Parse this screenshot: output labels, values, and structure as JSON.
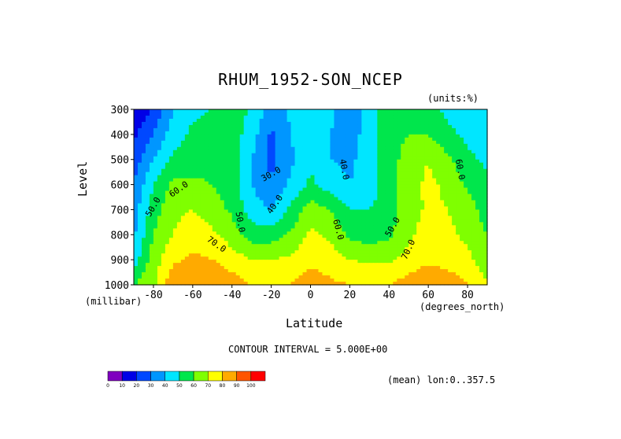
{
  "chart_data": {
    "type": "heatmap",
    "title": "RHUM_1952-SON_NCEP",
    "units_label": "(units:%)",
    "xlabel": "Latitude",
    "x_units_label": "(degrees_north)",
    "ylabel": "Level",
    "y_units_label": "(millibar)",
    "xlim": [
      -90,
      90
    ],
    "ylim": [
      300,
      1000
    ],
    "x_ticks": [
      -80,
      -60,
      -40,
      -20,
      0,
      20,
      40,
      60,
      80
    ],
    "x_tick_labels": [
      "-80",
      "-60",
      "-40",
      "-20",
      "0",
      "20",
      "40",
      "60",
      "80"
    ],
    "y_ticks": [
      300,
      400,
      500,
      600,
      700,
      800,
      900,
      1000
    ],
    "y_tick_labels": [
      "300",
      "400",
      "500",
      "600",
      "700",
      "800",
      "900",
      "1000"
    ],
    "lat": [
      -90,
      -80,
      -70,
      -60,
      -50,
      -40,
      -30,
      -20,
      -10,
      0,
      10,
      20,
      30,
      40,
      50,
      60,
      70,
      80,
      90
    ],
    "levels": [
      300,
      400,
      500,
      600,
      700,
      800,
      900,
      1000
    ],
    "values": [
      [
        10,
        22,
        40,
        48,
        50,
        52,
        50,
        35,
        42,
        50,
        42,
        35,
        45,
        55,
        58,
        52,
        48,
        45,
        42
      ],
      [
        18,
        30,
        45,
        52,
        55,
        55,
        45,
        28,
        40,
        48,
        40,
        35,
        45,
        55,
        60,
        60,
        52,
        48,
        45
      ],
      [
        25,
        40,
        52,
        55,
        57,
        55,
        40,
        28,
        38,
        48,
        40,
        38,
        45,
        55,
        65,
        70,
        62,
        52,
        48
      ],
      [
        30,
        50,
        62,
        62,
        60,
        55,
        40,
        30,
        42,
        52,
        45,
        40,
        45,
        55,
        66,
        72,
        68,
        58,
        52
      ],
      [
        35,
        55,
        68,
        70,
        65,
        58,
        45,
        40,
        52,
        65,
        60,
        50,
        50,
        55,
        65,
        72,
        70,
        65,
        55
      ],
      [
        38,
        60,
        70,
        75,
        72,
        65,
        55,
        55,
        62,
        72,
        68,
        58,
        55,
        58,
        68,
        75,
        72,
        68,
        60
      ],
      [
        45,
        65,
        78,
        82,
        80,
        75,
        70,
        70,
        72,
        78,
        75,
        70,
        68,
        68,
        74,
        78,
        76,
        72,
        65
      ],
      [
        60,
        68,
        88,
        90,
        88,
        85,
        80,
        78,
        80,
        85,
        82,
        80,
        80,
        80,
        85,
        88,
        86,
        80,
        70
      ]
    ],
    "colorbar": {
      "bounds": [
        0,
        10,
        20,
        30,
        40,
        50,
        60,
        70,
        80,
        90,
        100
      ],
      "tick_labels": [
        "0",
        "10",
        "20",
        "30",
        "40",
        "50",
        "60",
        "70",
        "80",
        "90",
        "100"
      ],
      "colors": [
        "#7f00bf",
        "#0000e6",
        "#0048ff",
        "#0096ff",
        "#00e6ff",
        "#00e64c",
        "#7fff00",
        "#ffff00",
        "#ffaa00",
        "#ff5500",
        "#ff0000"
      ]
    },
    "contour_labels": [
      {
        "text": "30.0",
        "lat": -20,
        "level": 560,
        "angle": -30
      },
      {
        "text": "40.0",
        "lat": 17,
        "level": 540,
        "angle": 80
      },
      {
        "text": "60.0",
        "lat": 76,
        "level": 540,
        "angle": 80
      },
      {
        "text": "60.0",
        "lat": -67,
        "level": 620,
        "angle": -35
      },
      {
        "text": "50.0",
        "lat": -80,
        "level": 690,
        "angle": -60
      },
      {
        "text": "40.0",
        "lat": -18,
        "level": 680,
        "angle": -55
      },
      {
        "text": "50.0",
        "lat": -36,
        "level": 750,
        "angle": 80
      },
      {
        "text": "60.0",
        "lat": 14,
        "level": 780,
        "angle": 75
      },
      {
        "text": "50.0",
        "lat": 42,
        "level": 770,
        "angle": -60
      },
      {
        "text": "70.0",
        "lat": -48,
        "level": 840,
        "angle": 35
      },
      {
        "text": "70.0",
        "lat": 50,
        "level": 860,
        "angle": -65
      }
    ],
    "contour_interval_text": "CONTOUR INTERVAL = 5.000E+00",
    "mean_text": "(mean) lon:0..357.5"
  }
}
